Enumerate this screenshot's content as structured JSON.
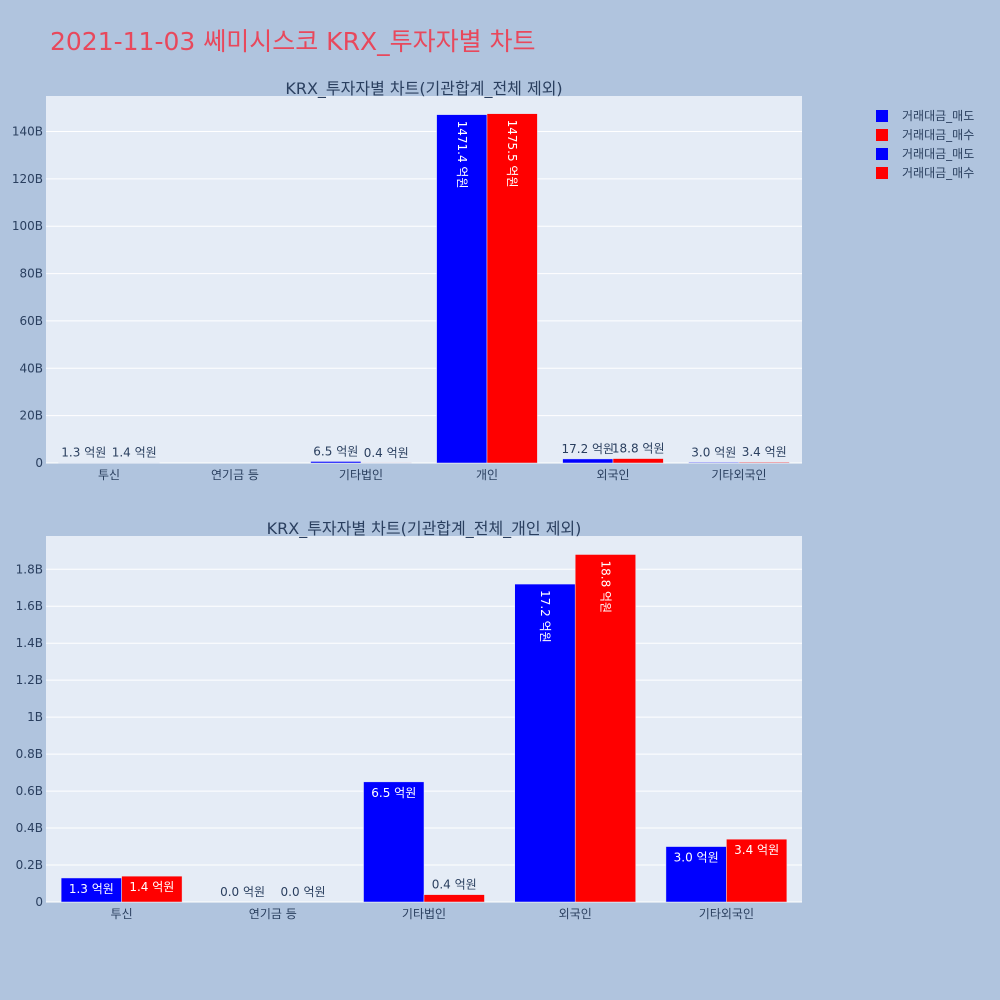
{
  "page": {
    "title": "2021-11-03 쎄미시스코 KRX_투자자별 차트"
  },
  "colors": {
    "sell": "#0000ff",
    "buy": "#ff0000",
    "plot_bg": "#e5ecf6",
    "page_bg": "#b0c4de",
    "text": "#2a3f5f"
  },
  "legend": {
    "position": "top-right",
    "items": [
      {
        "label": "거래대금_매도",
        "color": "#0000ff"
      },
      {
        "label": "거래대금_매수",
        "color": "#ff0000"
      },
      {
        "label": "거래대금_매도",
        "color": "#0000ff"
      },
      {
        "label": "거래대금_매수",
        "color": "#ff0000"
      }
    ]
  },
  "chart_data": [
    {
      "type": "bar",
      "title": "KRX_투자자별 차트(기관합계_전체 제외)",
      "categories": [
        "투신",
        "연기금 등",
        "기타법인",
        "개인",
        "외국인",
        "기타외국인"
      ],
      "series": [
        {
          "name": "거래대금_매도",
          "color": "#0000ff",
          "values": [
            130000000,
            0,
            650000000,
            147140000000,
            1720000000,
            300000000
          ],
          "labels": [
            "1.3 억원",
            "",
            "6.5 억원",
            "1471.4 억원",
            "17.2 억원",
            "3.0 억원"
          ]
        },
        {
          "name": "거래대금_매수",
          "color": "#ff0000",
          "values": [
            140000000,
            0,
            40000000,
            147550000000,
            1880000000,
            340000000
          ],
          "labels": [
            "1.4 억원",
            "",
            "0.4 억원",
            "1475.5 억원",
            "18.8 억원",
            "3.4 억원"
          ]
        }
      ],
      "ylim": [
        0,
        155000000000
      ],
      "yticks": [
        0,
        20000000000,
        40000000000,
        60000000000,
        80000000000,
        100000000000,
        120000000000,
        140000000000
      ],
      "ytick_labels": [
        "0",
        "20B",
        "40B",
        "60B",
        "80B",
        "100B",
        "120B",
        "140B"
      ],
      "grid": true
    },
    {
      "type": "bar",
      "title": "KRX_투자자별 차트(기관합계_전체_개인 제외)",
      "categories": [
        "투신",
        "연기금 등",
        "기타법인",
        "외국인",
        "기타외국인"
      ],
      "series": [
        {
          "name": "거래대금_매도",
          "color": "#0000ff",
          "values": [
            130000000,
            0,
            650000000,
            1720000000,
            300000000
          ],
          "labels": [
            "1.3 억원",
            "0.0 억원",
            "6.5 억원",
            "17.2 억원",
            "3.0 억원"
          ]
        },
        {
          "name": "거래대금_매수",
          "color": "#ff0000",
          "values": [
            140000000,
            0,
            40000000,
            1880000000,
            340000000
          ],
          "labels": [
            "1.4 억원",
            "0.0 억원",
            "0.4 억원",
            "18.8 억원",
            "3.4 억원"
          ]
        }
      ],
      "ylim": [
        0,
        1980000000
      ],
      "yticks": [
        0,
        200000000,
        400000000,
        600000000,
        800000000,
        1000000000,
        1200000000,
        1400000000,
        1600000000,
        1800000000
      ],
      "ytick_labels": [
        "0",
        "0.2B",
        "0.4B",
        "0.6B",
        "0.8B",
        "1B",
        "1.2B",
        "1.4B",
        "1.6B",
        "1.8B"
      ],
      "grid": true
    }
  ]
}
